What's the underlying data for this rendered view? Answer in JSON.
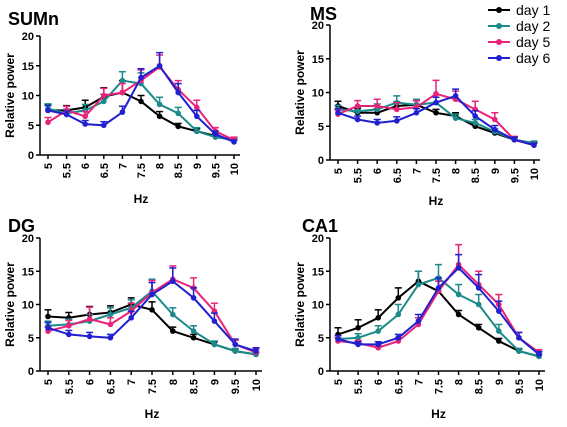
{
  "legend": {
    "placement": "top-right",
    "entries": [
      {
        "label": "day 1",
        "color": "#000000"
      },
      {
        "label": "day 2",
        "color": "#1a8a8a"
      },
      {
        "label": "day 5",
        "color": "#e8237a"
      },
      {
        "label": "day 6",
        "color": "#2020d0"
      }
    ]
  },
  "chart_data": [
    {
      "type": "line",
      "title": "SUMn",
      "xlabel": "Hz",
      "ylabel": "Relative power",
      "ylim": [
        0,
        20
      ],
      "yticks": [
        "0",
        "5",
        "10",
        "15",
        "20"
      ],
      "xtick_labels": [
        "5",
        "5.5",
        "6",
        "6.5",
        "7",
        "7.5",
        "8",
        "8.5",
        "9",
        "9.5",
        "10"
      ],
      "x": [
        5,
        5.5,
        6,
        6.5,
        7,
        7.5,
        8,
        8.5,
        9,
        9.5,
        10
      ],
      "series": [
        {
          "name": "day 1",
          "values": [
            7.5,
            7.5,
            8.0,
            9.8,
            10.5,
            9.0,
            6.5,
            4.8,
            4.0,
            3.2,
            2.5
          ],
          "errors": [
            1.0,
            0.8,
            1.2,
            1.5,
            2.0,
            1.0,
            0.8,
            0.5,
            0.4,
            0.4,
            0.3
          ]
        },
        {
          "name": "day 2",
          "values": [
            7.8,
            7.0,
            7.5,
            9.0,
            12.5,
            12.0,
            8.5,
            7.0,
            4.0,
            3.0,
            2.5
          ],
          "errors": [
            0.8,
            0.7,
            1.0,
            1.2,
            1.5,
            1.8,
            1.2,
            1.0,
            0.6,
            0.4,
            0.3
          ]
        },
        {
          "name": "day 5",
          "values": [
            5.5,
            7.5,
            6.5,
            10.0,
            10.5,
            12.5,
            14.8,
            11.0,
            8.0,
            4.0,
            2.5
          ],
          "errors": [
            0.8,
            0.7,
            0.8,
            1.2,
            1.5,
            1.8,
            2.0,
            1.5,
            1.2,
            0.6,
            0.5
          ]
        },
        {
          "name": "day 6",
          "values": [
            7.5,
            6.8,
            5.2,
            5.0,
            7.2,
            13.0,
            15.0,
            10.5,
            6.5,
            3.5,
            2.2
          ],
          "errors": [
            0.8,
            0.6,
            0.6,
            0.6,
            1.0,
            1.5,
            2.2,
            1.5,
            1.0,
            0.5,
            0.3
          ]
        }
      ]
    },
    {
      "type": "line",
      "title": "MS",
      "xlabel": "Hz",
      "ylabel": "Relative power",
      "ylim": [
        0,
        20
      ],
      "yticks": [
        "0",
        "5",
        "10",
        "15",
        "20"
      ],
      "xtick_labels": [
        "5",
        "5.5",
        "6",
        "6.5",
        "7",
        "7.5",
        "8",
        "8.5",
        "9",
        "9.5",
        "10"
      ],
      "x": [
        5,
        5.5,
        6,
        6.5,
        7,
        7.5,
        8,
        8.5,
        9,
        9.5,
        10
      ],
      "series": [
        {
          "name": "day 1",
          "values": [
            8.0,
            7.0,
            7.0,
            8.0,
            8.2,
            7.0,
            6.5,
            5.0,
            4.0,
            3.0,
            2.5
          ],
          "errors": [
            0.7,
            0.6,
            0.6,
            0.6,
            0.6,
            0.5,
            0.5,
            0.4,
            0.3,
            0.3,
            0.2
          ]
        },
        {
          "name": "day 2",
          "values": [
            7.5,
            7.2,
            7.5,
            8.5,
            8.2,
            8.5,
            6.2,
            5.5,
            4.2,
            3.0,
            2.5
          ],
          "errors": [
            0.6,
            0.6,
            0.8,
            1.0,
            0.8,
            0.8,
            0.6,
            0.5,
            0.4,
            0.3,
            0.3
          ]
        },
        {
          "name": "day 5",
          "values": [
            6.8,
            8.0,
            8.0,
            7.5,
            7.8,
            9.8,
            9.0,
            7.5,
            6.0,
            3.0,
            2.2
          ],
          "errors": [
            0.6,
            0.8,
            1.0,
            1.0,
            1.0,
            2.0,
            1.2,
            1.2,
            1.0,
            0.5,
            0.3
          ]
        },
        {
          "name": "day 6",
          "values": [
            7.0,
            6.0,
            5.5,
            5.8,
            7.0,
            8.5,
            9.5,
            6.5,
            4.5,
            3.0,
            2.2
          ],
          "errors": [
            0.6,
            0.5,
            0.5,
            0.6,
            0.6,
            0.8,
            1.0,
            0.8,
            0.6,
            0.4,
            0.3
          ]
        }
      ]
    },
    {
      "type": "line",
      "title": "DG",
      "xlabel": "Hz",
      "ylabel": "Relative power",
      "ylim": [
        0,
        20
      ],
      "yticks": [
        "0",
        "5",
        "10",
        "15",
        "20"
      ],
      "xtick_labels": [
        "5",
        "5.5",
        "6",
        "6.5",
        "7",
        "7.5",
        "8",
        "8.5",
        "9",
        "9.5",
        "10"
      ],
      "x": [
        5,
        5.5,
        6,
        6.5,
        7,
        7.5,
        8,
        8.5,
        9,
        9.5,
        10
      ],
      "series": [
        {
          "name": "day 1",
          "values": [
            8.2,
            8.0,
            8.5,
            8.8,
            10.0,
            9.2,
            6.0,
            5.0,
            4.0,
            3.0,
            2.5
          ],
          "errors": [
            1.0,
            0.8,
            1.2,
            1.0,
            1.0,
            1.2,
            0.6,
            0.5,
            0.4,
            0.3,
            0.3
          ]
        },
        {
          "name": "day 2",
          "values": [
            6.8,
            7.0,
            7.5,
            8.5,
            9.5,
            12.0,
            8.5,
            6.0,
            4.0,
            3.0,
            2.5
          ],
          "errors": [
            0.7,
            0.8,
            1.0,
            1.0,
            1.2,
            1.8,
            1.0,
            0.8,
            0.5,
            0.4,
            0.3
          ]
        },
        {
          "name": "day 5",
          "values": [
            6.0,
            6.8,
            7.8,
            7.0,
            9.0,
            11.8,
            13.8,
            12.5,
            9.0,
            4.0,
            2.8
          ],
          "errors": [
            0.6,
            0.8,
            1.8,
            1.0,
            1.2,
            1.8,
            2.0,
            1.5,
            1.2,
            0.6,
            0.5
          ]
        },
        {
          "name": "day 6",
          "values": [
            6.5,
            5.5,
            5.2,
            5.0,
            8.0,
            11.5,
            13.5,
            11.0,
            7.5,
            4.0,
            3.0
          ],
          "errors": [
            0.8,
            0.6,
            0.6,
            0.5,
            1.0,
            1.8,
            2.0,
            1.5,
            1.2,
            0.8,
            0.5
          ]
        }
      ]
    },
    {
      "type": "line",
      "title": "CA1",
      "xlabel": "Hz",
      "ylabel": "Relative power",
      "ylim": [
        0,
        20
      ],
      "yticks": [
        "0",
        "5",
        "10",
        "15",
        "20"
      ],
      "xtick_labels": [
        "5",
        "5.5",
        "6",
        "6.5",
        "7",
        "7.5",
        "8",
        "8.5",
        "9",
        "9.5",
        "10"
      ],
      "x": [
        5,
        5.5,
        6,
        6.5,
        7,
        7.5,
        8,
        8.5,
        9,
        9.5,
        10
      ],
      "series": [
        {
          "name": "day 1",
          "values": [
            5.5,
            6.5,
            8.0,
            11.0,
            13.5,
            12.0,
            8.5,
            6.5,
            4.5,
            3.0,
            2.2
          ],
          "errors": [
            1.0,
            1.2,
            1.2,
            1.5,
            1.5,
            1.5,
            0.6,
            0.5,
            0.4,
            0.3,
            0.3
          ]
        },
        {
          "name": "day 2",
          "values": [
            4.8,
            5.0,
            6.0,
            8.5,
            13.0,
            14.0,
            11.5,
            10.0,
            6.0,
            3.0,
            2.2
          ],
          "errors": [
            0.5,
            0.6,
            0.8,
            1.5,
            2.0,
            2.0,
            1.5,
            1.5,
            1.0,
            0.4,
            0.3
          ]
        },
        {
          "name": "day 5",
          "values": [
            4.5,
            4.2,
            3.5,
            4.5,
            7.0,
            12.0,
            16.0,
            13.0,
            10.0,
            5.0,
            2.8
          ],
          "errors": [
            0.5,
            0.4,
            0.4,
            0.5,
            1.0,
            1.5,
            3.0,
            2.0,
            1.5,
            0.8,
            0.4
          ]
        },
        {
          "name": "day 6",
          "values": [
            4.8,
            4.0,
            4.0,
            5.0,
            7.5,
            12.5,
            15.5,
            12.5,
            9.0,
            5.0,
            2.5
          ],
          "errors": [
            0.5,
            0.4,
            0.4,
            0.5,
            1.0,
            1.5,
            2.0,
            2.0,
            1.5,
            0.8,
            0.4
          ]
        }
      ]
    }
  ]
}
